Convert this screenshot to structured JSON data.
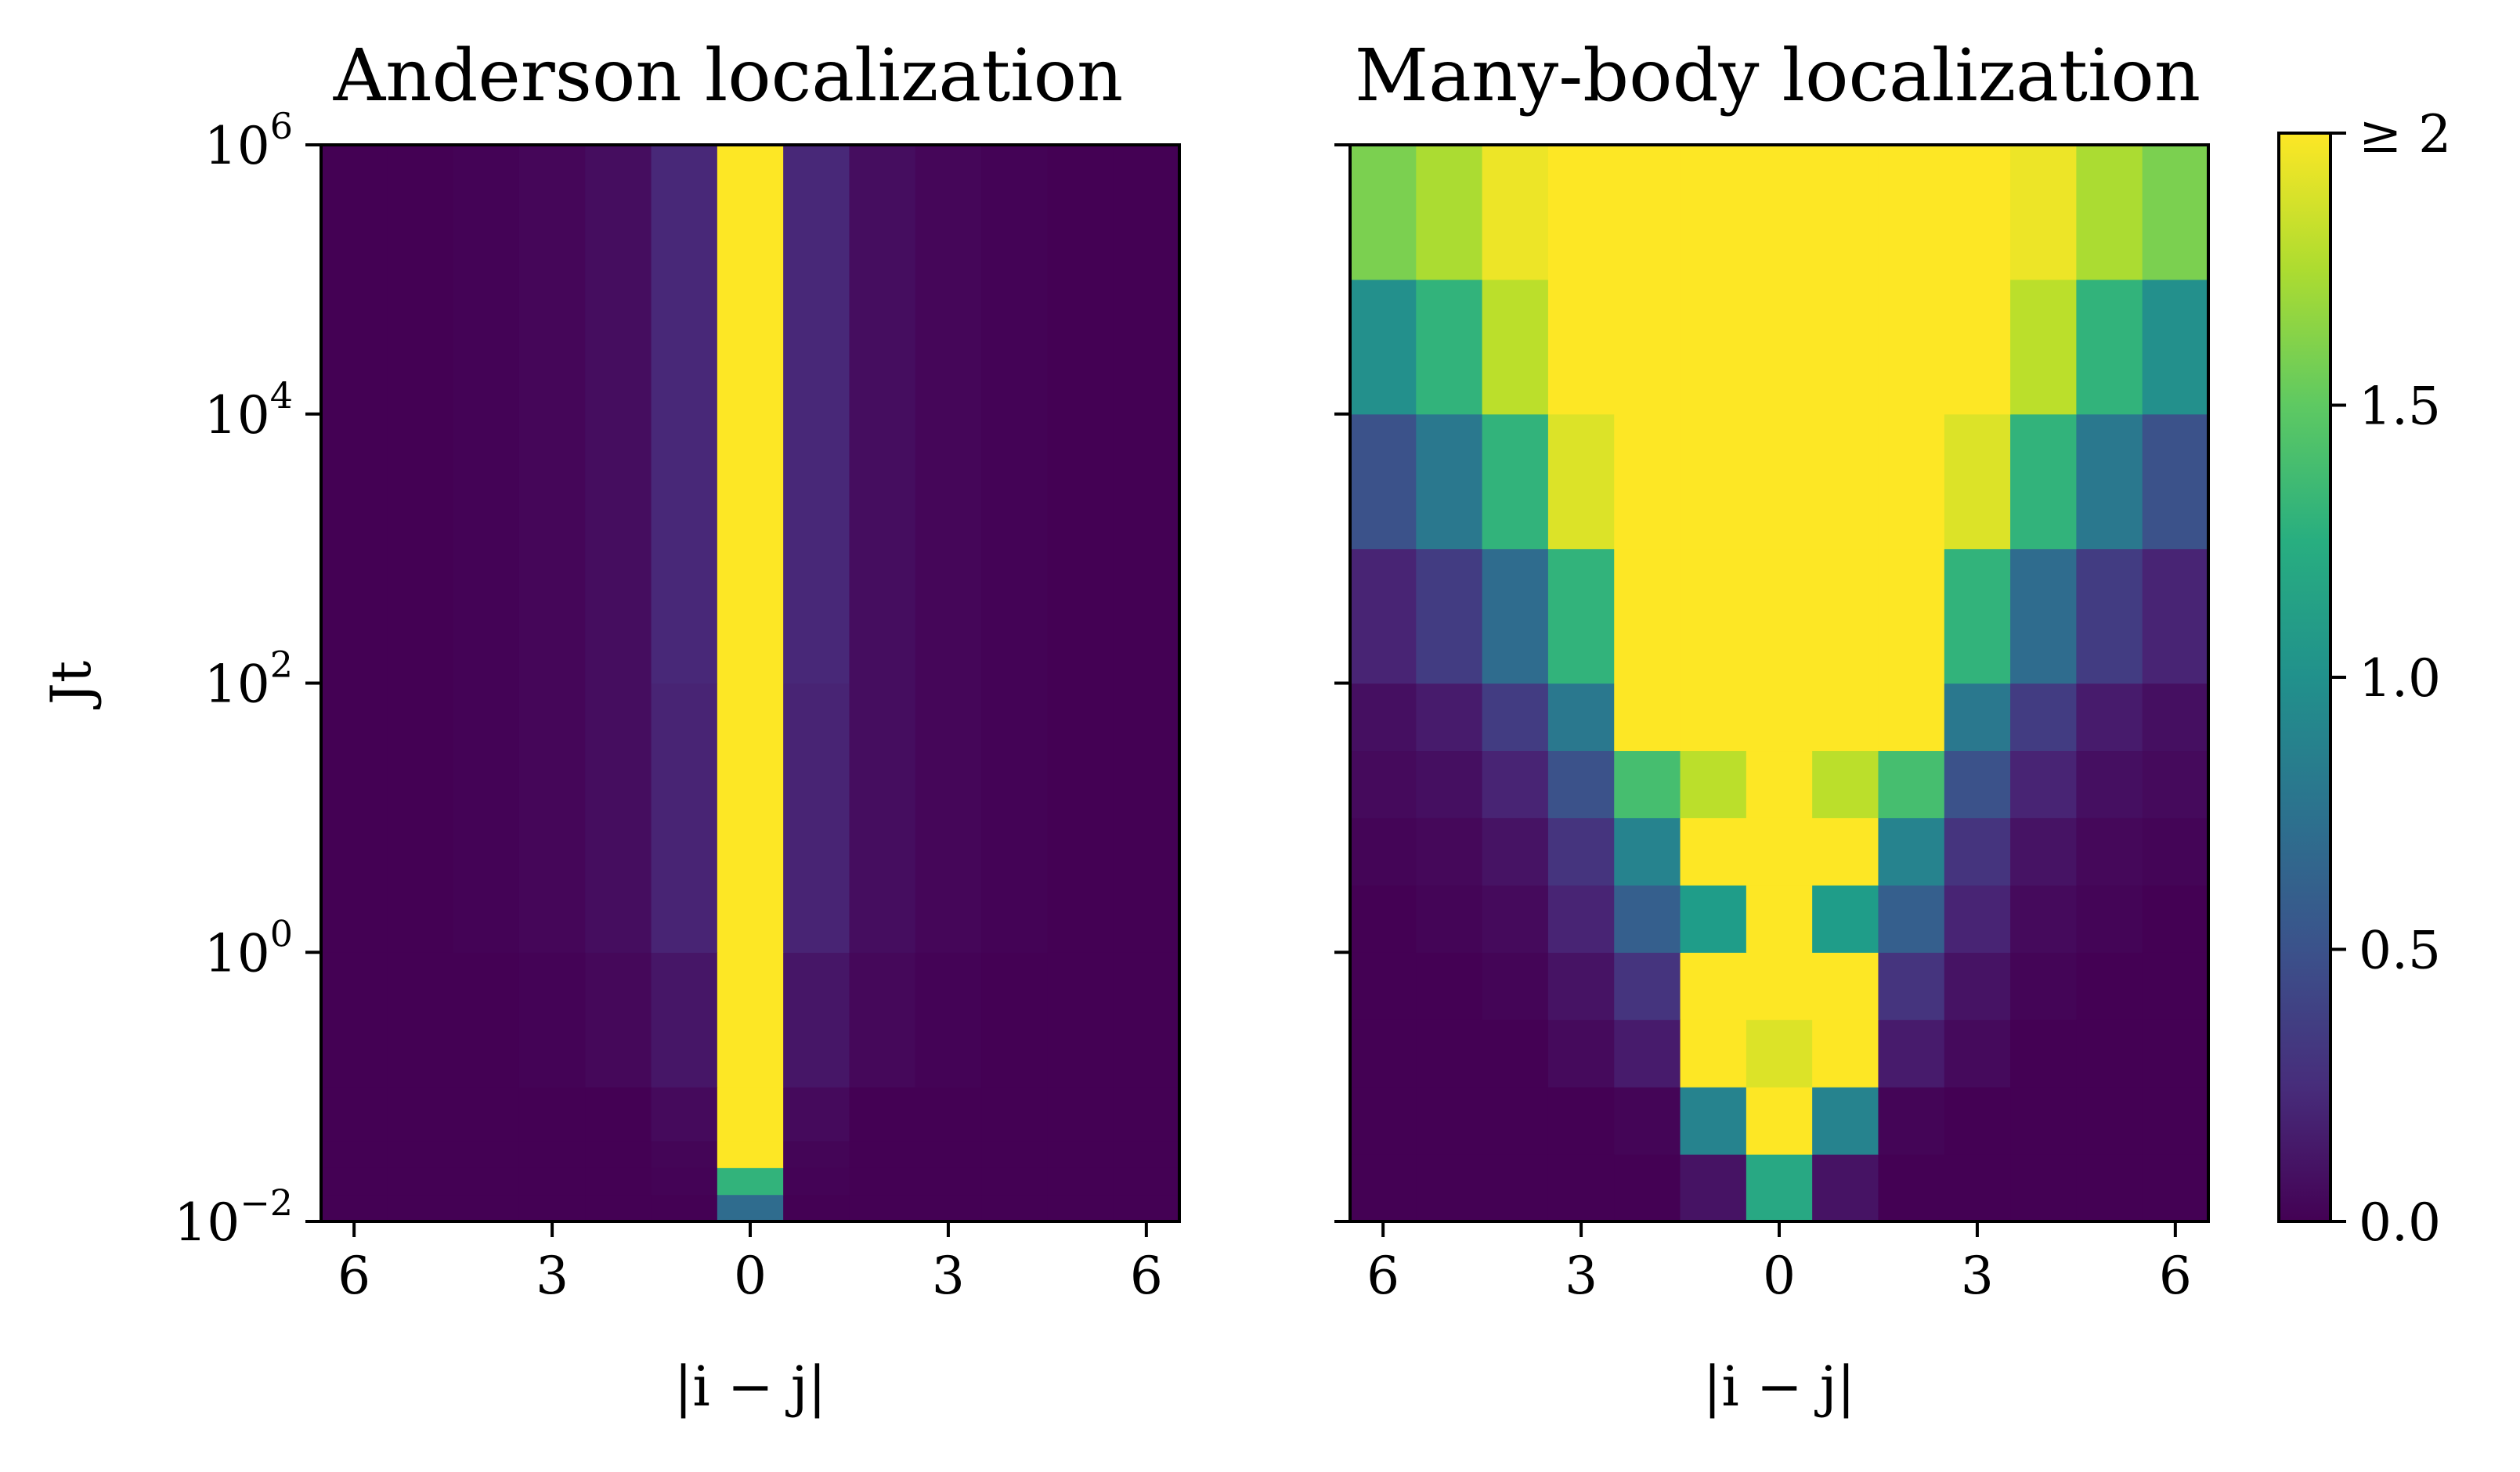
{
  "chart_data": [
    {
      "type": "heatmap",
      "title": "Anderson localization",
      "xlabel": "|i − j|",
      "ylabel": "Jt",
      "x_tick_labels": [
        "6",
        "3",
        "0",
        "3",
        "6"
      ],
      "y_scale": "log",
      "ylim": [
        0.01,
        1000000
      ],
      "y_tick_labels": [
        {
          "base": "10",
          "exp": "6"
        },
        {
          "base": "10",
          "exp": "4"
        },
        {
          "base": "10",
          "exp": "2"
        },
        {
          "base": "10",
          "exp": "0"
        },
        {
          "base": "10",
          "exp": "−2"
        }
      ],
      "columns": [
        -6,
        -5,
        -4,
        -3,
        -2,
        -1,
        0,
        1,
        2,
        3,
        4,
        5,
        6
      ],
      "rows": [
        {
          "log10_Jt_from": -2.0,
          "log10_Jt_to": -1.8,
          "values": [
            0,
            0,
            0,
            0,
            0,
            0.0,
            0.7,
            0.0,
            0,
            0,
            0,
            0,
            0
          ]
        },
        {
          "log10_Jt_from": -1.8,
          "log10_Jt_to": -1.6,
          "values": [
            0,
            0,
            0,
            0,
            0,
            0.01,
            1.3,
            0.01,
            0,
            0,
            0,
            0,
            0
          ]
        },
        {
          "log10_Jt_from": -1.6,
          "log10_Jt_to": -1.4,
          "values": [
            0,
            0,
            0,
            0,
            0,
            0.02,
            2.0,
            0.02,
            0,
            0,
            0,
            0,
            0
          ]
        },
        {
          "log10_Jt_from": -1.4,
          "log10_Jt_to": -1.0,
          "values": [
            0,
            0,
            0,
            0,
            0,
            0.05,
            2.0,
            0.05,
            0,
            0,
            0,
            0,
            0
          ]
        },
        {
          "log10_Jt_from": -1.0,
          "log10_Jt_to": 0.0,
          "values": [
            0,
            0,
            0,
            0.01,
            0.04,
            0.12,
            2.0,
            0.12,
            0.04,
            0.01,
            0,
            0,
            0
          ]
        },
        {
          "log10_Jt_from": 0.0,
          "log10_Jt_to": 2.0,
          "values": [
            0,
            0,
            0.01,
            0.03,
            0.07,
            0.2,
            2.0,
            0.2,
            0.07,
            0.03,
            0.01,
            0,
            0
          ]
        },
        {
          "log10_Jt_from": 2.0,
          "log10_Jt_to": 6.0,
          "values": [
            0,
            0,
            0.01,
            0.03,
            0.07,
            0.22,
            2.0,
            0.22,
            0.07,
            0.03,
            0.01,
            0,
            0
          ]
        }
      ]
    },
    {
      "type": "heatmap",
      "title": "Many-body localization",
      "xlabel": "|i − j|",
      "ylabel": "",
      "x_tick_labels": [
        "6",
        "3",
        "0",
        "3",
        "6"
      ],
      "y_scale": "log",
      "ylim": [
        0.01,
        1000000
      ],
      "columns": [
        -6,
        -5,
        -4,
        -3,
        -2,
        -1,
        0,
        1,
        2,
        3,
        4,
        5,
        6
      ],
      "rows": [
        {
          "log10_Jt_from": -2.0,
          "log10_Jt_to": -1.5,
          "values": [
            0,
            0,
            0,
            0,
            0,
            0.1,
            1.2,
            0.1,
            0,
            0,
            0,
            0,
            0
          ]
        },
        {
          "log10_Jt_from": -1.5,
          "log10_Jt_to": -1.0,
          "values": [
            0,
            0,
            0,
            0,
            0.02,
            0.9,
            2.0,
            0.9,
            0.02,
            0,
            0,
            0,
            0
          ]
        },
        {
          "log10_Jt_from": -1.0,
          "log10_Jt_to": -0.5,
          "values": [
            0,
            0,
            0,
            0.05,
            0.15,
            2.0,
            1.9,
            2.0,
            0.15,
            0.05,
            0,
            0,
            0
          ]
        },
        {
          "log10_Jt_from": -0.5,
          "log10_Jt_to": 0.0,
          "values": [
            0,
            0,
            0.02,
            0.1,
            0.3,
            2.0,
            2.0,
            2.0,
            0.3,
            0.1,
            0.02,
            0,
            0
          ]
        },
        {
          "log10_Jt_from": 0.0,
          "log10_Jt_to": 0.5,
          "values": [
            0,
            0.02,
            0.05,
            0.2,
            0.6,
            1.1,
            2.0,
            1.1,
            0.6,
            0.2,
            0.05,
            0.02,
            0
          ]
        },
        {
          "log10_Jt_from": 0.5,
          "log10_Jt_to": 1.0,
          "values": [
            0.02,
            0.04,
            0.1,
            0.3,
            0.9,
            2.0,
            2.0,
            2.0,
            0.9,
            0.3,
            0.1,
            0.04,
            0.02
          ]
        },
        {
          "log10_Jt_from": 1.0,
          "log10_Jt_to": 1.5,
          "values": [
            0.05,
            0.08,
            0.2,
            0.5,
            1.4,
            1.8,
            2.0,
            1.8,
            1.4,
            0.5,
            0.2,
            0.08,
            0.05
          ]
        },
        {
          "log10_Jt_from": 1.5,
          "log10_Jt_to": 2.0,
          "values": [
            0.08,
            0.15,
            0.35,
            0.8,
            2.0,
            2.0,
            2.0,
            2.0,
            2.0,
            0.8,
            0.35,
            0.15,
            0.08
          ]
        },
        {
          "log10_Jt_from": 2.0,
          "log10_Jt_to": 3.0,
          "values": [
            0.2,
            0.35,
            0.7,
            1.3,
            2.0,
            2.0,
            2.0,
            2.0,
            2.0,
            1.3,
            0.7,
            0.35,
            0.2
          ]
        },
        {
          "log10_Jt_from": 3.0,
          "log10_Jt_to": 4.0,
          "values": [
            0.5,
            0.8,
            1.3,
            1.9,
            2.0,
            2.0,
            2.0,
            2.0,
            2.0,
            1.9,
            1.3,
            0.8,
            0.5
          ]
        },
        {
          "log10_Jt_from": 4.0,
          "log10_Jt_to": 5.0,
          "values": [
            1.0,
            1.3,
            1.8,
            2.0,
            2.0,
            2.0,
            2.0,
            2.0,
            2.0,
            2.0,
            1.8,
            1.3,
            1.0
          ]
        },
        {
          "log10_Jt_from": 5.0,
          "log10_Jt_to": 6.0,
          "values": [
            1.6,
            1.75,
            1.95,
            2.0,
            2.0,
            2.0,
            2.0,
            2.0,
            2.0,
            2.0,
            1.95,
            1.75,
            1.6
          ]
        }
      ]
    }
  ],
  "colorbar": {
    "colormap": "viridis",
    "min": 0,
    "max": 2,
    "tick_labels": [
      "≥ 2",
      "1.5",
      "1.0",
      "0.5",
      "0.0"
    ]
  }
}
